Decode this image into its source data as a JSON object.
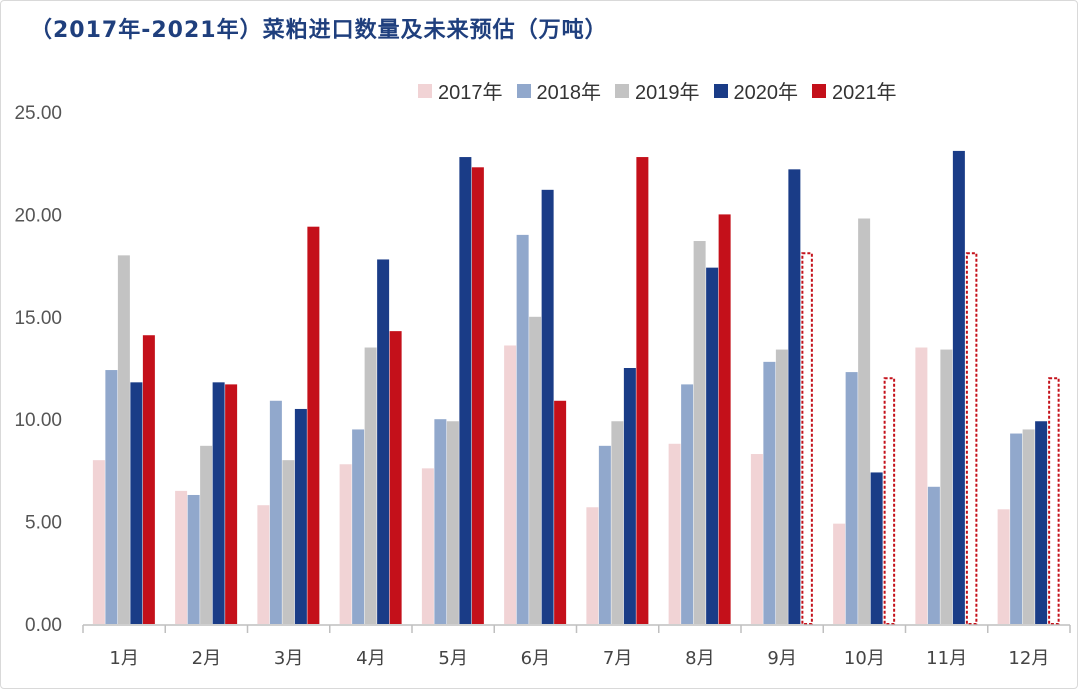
{
  "chart_data": {
    "type": "bar",
    "title": "（2017年-2021年）菜粕进口数量及未来预估（万吨）",
    "categories": [
      "1月",
      "2月",
      "3月",
      "4月",
      "5月",
      "6月",
      "7月",
      "8月",
      "9月",
      "10月",
      "11月",
      "12月"
    ],
    "ylim": [
      0,
      25
    ],
    "yticks": [
      "0.00",
      "5.00",
      "10.00",
      "15.00",
      "20.00",
      "25.00"
    ],
    "grid": false,
    "legend_position": "top-right",
    "series": [
      {
        "name": "2017年",
        "color": "#f1d3d5",
        "values": [
          8.0,
          6.5,
          5.8,
          7.8,
          7.6,
          13.6,
          5.7,
          8.8,
          8.3,
          4.9,
          13.5,
          5.6
        ]
      },
      {
        "name": "2018年",
        "color": "#91a8cc",
        "values": [
          12.4,
          6.3,
          10.9,
          9.5,
          10.0,
          19.0,
          8.7,
          11.7,
          12.8,
          12.3,
          6.7,
          9.3
        ]
      },
      {
        "name": "2019年",
        "color": "#c3c3c3",
        "values": [
          18.0,
          8.7,
          8.0,
          13.5,
          9.9,
          15.0,
          9.9,
          18.7,
          13.4,
          19.8,
          13.4,
          9.5
        ]
      },
      {
        "name": "2020年",
        "color": "#1a3c87",
        "values": [
          11.8,
          11.8,
          10.5,
          17.8,
          22.8,
          21.2,
          12.5,
          17.4,
          22.2,
          7.4,
          23.1,
          9.9
        ]
      },
      {
        "name": "2021年",
        "color": "#c4101a",
        "values": [
          14.1,
          11.7,
          19.4,
          14.3,
          22.3,
          10.9,
          22.8,
          20.0,
          18.1,
          12.0,
          18.1,
          12.0
        ],
        "estimated_from_index": 8
      }
    ]
  }
}
